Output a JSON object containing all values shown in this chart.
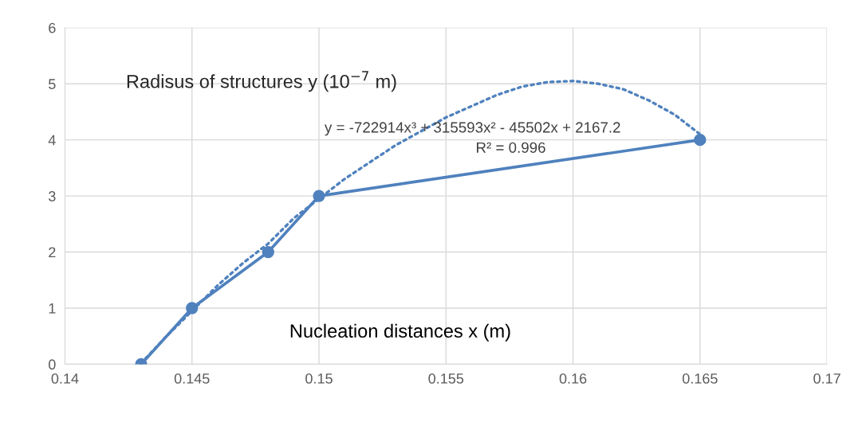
{
  "chart_data": {
    "type": "line",
    "xlabel": "Nucleation distances x (m)",
    "ylabel": "Radisus of structures y (10$^{−7}$ m)",
    "annotations": [
      "y = -722914x³ + 315593x² - 45502x + 2167.2",
      "R² = 0.996"
    ],
    "series": [
      {
        "color": "#4f81bd",
        "marker": "circle",
        "line_style": "solid",
        "x": [
          0.143,
          0.145,
          0.148,
          0.15,
          0.165
        ],
        "values": [
          0,
          1,
          2,
          3,
          4
        ]
      },
      {
        "color": "#4f81bd",
        "marker": "none",
        "line_style": "dotted",
        "x": [
          0.143,
          0.144,
          0.145,
          0.146,
          0.147,
          0.148,
          0.149,
          0.15,
          0.151,
          0.152,
          0.153,
          0.154,
          0.155,
          0.156,
          0.157,
          0.158,
          0.159,
          0.16,
          0.161,
          0.162,
          0.163,
          0.164,
          0.165
        ],
        "values": [
          0.02,
          0.5,
          0.95,
          1.4,
          1.8,
          2.15,
          2.6,
          2.95,
          3.3,
          3.6,
          3.9,
          4.15,
          4.4,
          4.6,
          4.8,
          4.95,
          5.03,
          5.05,
          5.0,
          4.9,
          4.7,
          4.45,
          4.1
        ]
      }
    ],
    "xlim": [
      0.14,
      0.17
    ],
    "xticks": [
      0.14,
      0.145,
      0.15,
      0.155,
      0.16,
      0.165,
      0.17
    ],
    "ylim": [
      0,
      6
    ],
    "yticks": [
      0,
      1,
      2,
      3,
      4,
      5,
      6
    ],
    "grid": true,
    "legend": false
  }
}
